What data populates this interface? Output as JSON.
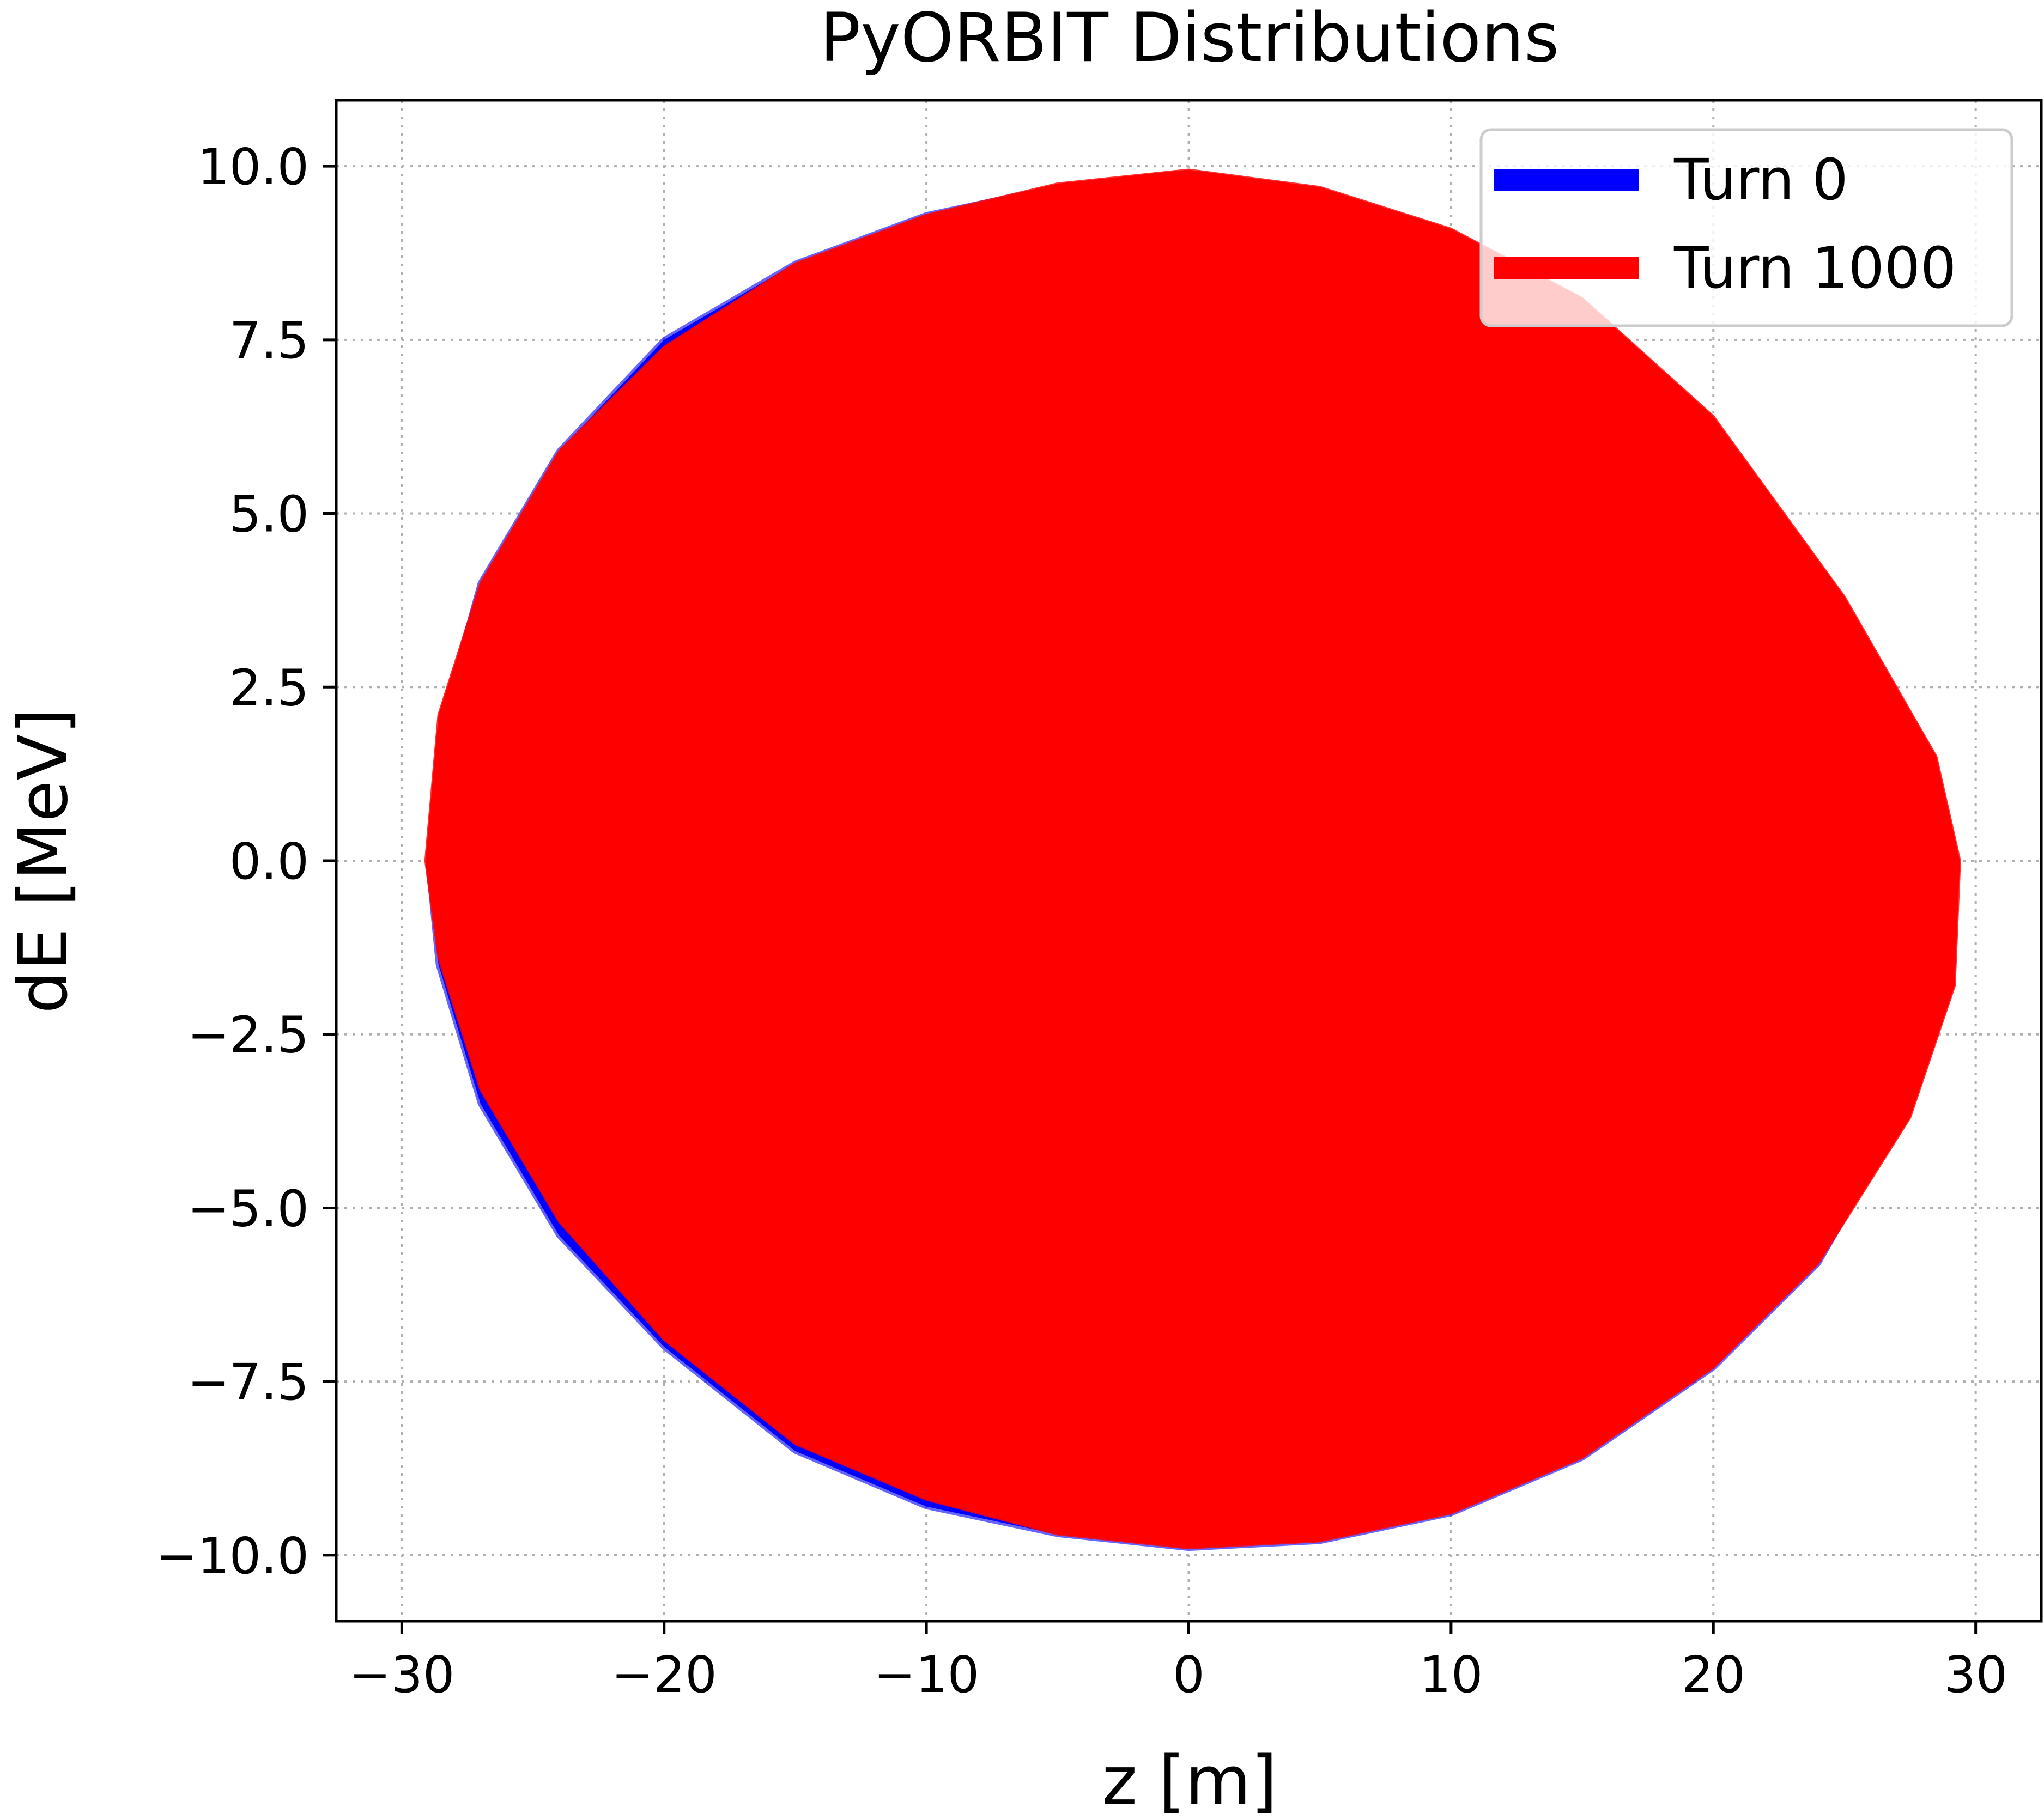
{
  "chart_data": {
    "type": "scatter",
    "title": "PyORBIT Distributions",
    "xlabel": "z [m]",
    "ylabel": "dE [MeV]",
    "xlim": [
      -32.5,
      32.5
    ],
    "ylim": [
      -10.95,
      10.95
    ],
    "xticks": [
      -30,
      -20,
      -10,
      0,
      10,
      20,
      30
    ],
    "xtick_labels": [
      "−30",
      "−20",
      "−10",
      "0",
      "10",
      "20",
      "30"
    ],
    "yticks": [
      10.0,
      7.5,
      5.0,
      2.5,
      0.0,
      -2.5,
      -5.0,
      -7.5,
      -10.0
    ],
    "ytick_labels": [
      "10.0",
      "7.5",
      "5.0",
      "2.5",
      "0.0",
      "−2.5",
      "−5.0",
      "−7.5",
      "−10.0"
    ],
    "grid": true,
    "legend_position": "top-right",
    "series": [
      {
        "name": "Turn 0",
        "color": "#0000ff",
        "boundary": [
          [
            0,
            9.9
          ],
          [
            5,
            9.6
          ],
          [
            10,
            8.7
          ],
          [
            15,
            7.4
          ],
          [
            20,
            5.5
          ],
          [
            25,
            3.3
          ],
          [
            28.2,
            1.2
          ],
          [
            29.2,
            0
          ],
          [
            29.0,
            -1.8
          ],
          [
            27,
            -3.8
          ],
          [
            24,
            -5.8
          ],
          [
            20,
            -7.3
          ],
          [
            15,
            -8.6
          ],
          [
            10,
            -9.4
          ],
          [
            5,
            -9.8
          ],
          [
            0,
            -9.9
          ],
          [
            -5,
            -9.7
          ],
          [
            -10,
            -9.3
          ],
          [
            -15,
            -8.5
          ],
          [
            -20,
            -7.0
          ],
          [
            -24,
            -5.4
          ],
          [
            -27,
            -3.5
          ],
          [
            -28.6,
            -1.5
          ],
          [
            -29,
            0
          ],
          [
            -28.4,
            2.1
          ],
          [
            -27,
            4.0
          ],
          [
            -24,
            5.9
          ],
          [
            -20,
            7.5
          ],
          [
            -15,
            8.6
          ],
          [
            -10,
            9.3
          ],
          [
            -5,
            9.7
          ]
        ]
      },
      {
        "name": "Turn 1000",
        "color": "#ff0000",
        "boundary": [
          [
            0,
            9.95
          ],
          [
            5,
            9.7
          ],
          [
            10,
            9.1
          ],
          [
            15,
            8.1
          ],
          [
            20,
            6.4
          ],
          [
            25,
            3.8
          ],
          [
            28.5,
            1.5
          ],
          [
            29.4,
            0
          ],
          [
            29.2,
            -1.8
          ],
          [
            27.5,
            -3.7
          ],
          [
            24,
            -5.8
          ],
          [
            20,
            -7.3
          ],
          [
            15,
            -8.6
          ],
          [
            10,
            -9.4
          ],
          [
            5,
            -9.8
          ],
          [
            0,
            -9.9
          ],
          [
            -5,
            -9.7
          ],
          [
            -10,
            -9.2
          ],
          [
            -15,
            -8.4
          ],
          [
            -20,
            -6.9
          ],
          [
            -24,
            -5.2
          ],
          [
            -27,
            -3.3
          ],
          [
            -28.6,
            -1.4
          ],
          [
            -29.1,
            0
          ],
          [
            -28.6,
            2.1
          ],
          [
            -27,
            4.0
          ],
          [
            -24,
            5.9
          ],
          [
            -20,
            7.4
          ],
          [
            -15,
            8.6
          ],
          [
            -10,
            9.3
          ],
          [
            -5,
            9.75
          ]
        ]
      }
    ]
  }
}
